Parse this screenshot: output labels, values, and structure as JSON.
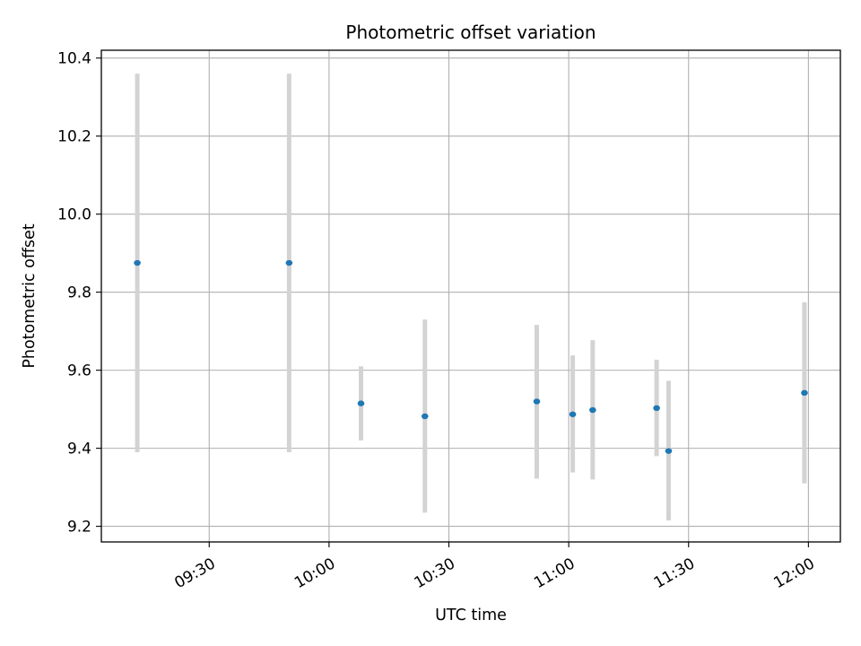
{
  "chart_data": {
    "type": "scatter",
    "title": "Photometric offset variation",
    "xlabel": "UTC time",
    "ylabel": "Photometric offset",
    "x_axis_type": "time",
    "xlim": [
      "09:03",
      "12:08"
    ],
    "ylim": [
      9.16,
      10.42
    ],
    "x_ticks": [
      "09:30",
      "10:00",
      "10:30",
      "11:00",
      "11:30",
      "12:00"
    ],
    "y_ticks": [
      9.2,
      9.4,
      9.6,
      9.8,
      10.0,
      10.2,
      10.4
    ],
    "y_tick_labels": [
      "9.2",
      "9.4",
      "9.6",
      "9.8",
      "10.0",
      "10.2",
      "10.4"
    ],
    "grid": true,
    "point_color": "#1f77b4",
    "errorbar_color": "#d3d3d3",
    "points": [
      {
        "x": "09:12",
        "y": 9.875,
        "ylo": 9.39,
        "yhi": 10.36
      },
      {
        "x": "09:50",
        "y": 9.875,
        "ylo": 9.39,
        "yhi": 10.36
      },
      {
        "x": "10:08",
        "y": 9.515,
        "ylo": 9.42,
        "yhi": 9.61
      },
      {
        "x": "10:24",
        "y": 9.482,
        "ylo": 9.235,
        "yhi": 9.73
      },
      {
        "x": "10:52",
        "y": 9.52,
        "ylo": 9.322,
        "yhi": 9.716
      },
      {
        "x": "11:01",
        "y": 9.487,
        "ylo": 9.338,
        "yhi": 9.638
      },
      {
        "x": "11:06",
        "y": 9.498,
        "ylo": 9.32,
        "yhi": 9.677
      },
      {
        "x": "11:22",
        "y": 9.503,
        "ylo": 9.38,
        "yhi": 9.627
      },
      {
        "x": "11:25",
        "y": 9.393,
        "ylo": 9.215,
        "yhi": 9.573
      },
      {
        "x": "11:59",
        "y": 9.542,
        "ylo": 9.31,
        "yhi": 9.774
      }
    ]
  }
}
